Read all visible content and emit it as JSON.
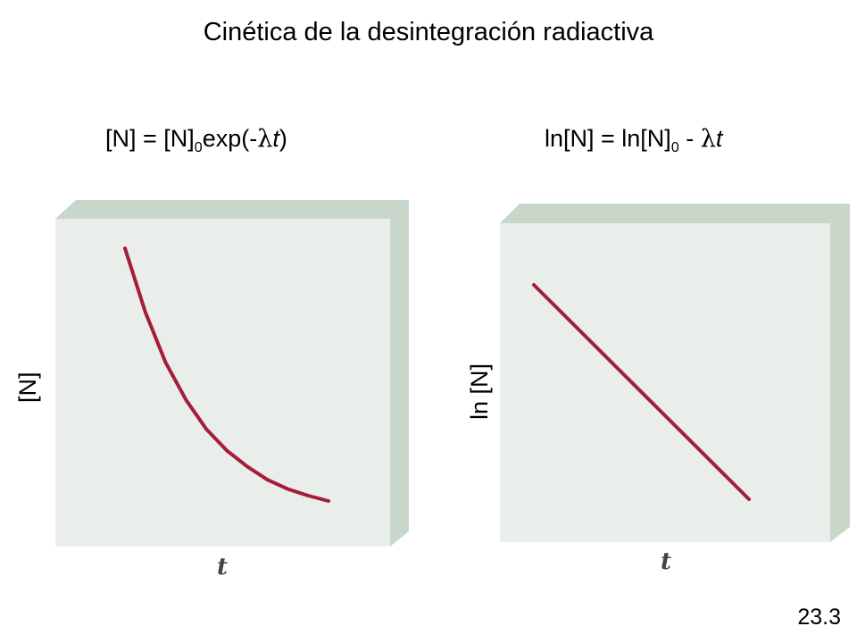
{
  "title": "Cinética de la desintegración radiactiva",
  "slide_number": "23.3",
  "colors": {
    "curve": "#a51d38",
    "panel_face": "#eaeeea",
    "panel_side": "#c9d7cb"
  },
  "chart_data": [
    {
      "type": "line",
      "formula": {
        "lhs": "[N] = [N]",
        "sub": "0",
        "mid": "exp(-",
        "lambda": "λ",
        "var": "t",
        "end": ")"
      },
      "xlabel": "t",
      "ylabel": "[N]",
      "scale": "linear",
      "grid": false,
      "x": [
        0,
        0.1,
        0.2,
        0.3,
        0.4,
        0.5,
        0.6,
        0.7,
        0.8,
        0.9,
        1.0
      ],
      "y": [
        1.0,
        0.76,
        0.57,
        0.43,
        0.32,
        0.24,
        0.18,
        0.13,
        0.095,
        0.07,
        0.05
      ]
    },
    {
      "type": "line",
      "formula": {
        "lhs": "ln[N] = ln[N]",
        "sub": "0",
        "mid": " - ",
        "lambda": "λ",
        "var": "t",
        "end": ""
      },
      "xlabel": "t",
      "ylabel": "ln [N]",
      "scale": "linear",
      "grid": false,
      "x": [
        0,
        1
      ],
      "y": [
        1,
        0
      ]
    }
  ]
}
